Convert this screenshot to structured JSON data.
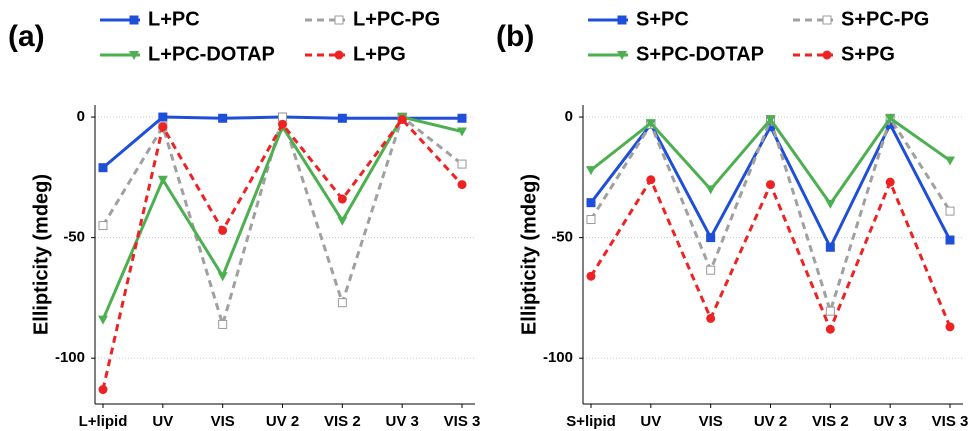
{
  "chart_data": [
    {
      "type": "line",
      "panel_label": "(a)",
      "y_label": "Ellipticity (mdeg)",
      "categories": [
        "L+lipid",
        "UV",
        "VIS",
        "UV 2",
        "VIS 2",
        "UV 3",
        "VIS 3"
      ],
      "ylim": [
        -119,
        5
      ],
      "yticks": [
        0,
        -50,
        -100
      ],
      "grid": true,
      "series": [
        {
          "name": "L+PC",
          "color": "#1f4fd8",
          "marker": "square",
          "dashed": false,
          "values": [
            -21,
            0,
            -0.5,
            0,
            -0.5,
            -0.5,
            -0.5
          ]
        },
        {
          "name": "L+PC-PG",
          "color": "#a0a0a0",
          "marker": "open-square",
          "dashed": true,
          "values": [
            -45,
            -4,
            -86,
            0,
            -77,
            0,
            -19.5
          ]
        },
        {
          "name": "L+PC-DOTAP",
          "color": "#4caf50",
          "marker": "triangle-down",
          "dashed": false,
          "values": [
            -84,
            -26,
            -66,
            -4,
            -43,
            0,
            -6
          ]
        },
        {
          "name": "L+PG",
          "color": "#ee2222",
          "marker": "circle",
          "dashed": true,
          "values": [
            -113,
            -4,
            -47,
            -3,
            -34,
            -1,
            -28
          ]
        }
      ]
    },
    {
      "type": "line",
      "panel_label": "(b)",
      "y_label": "Ellipticity (mdeg)",
      "categories": [
        "S+lipid",
        "UV",
        "VIS",
        "UV 2",
        "VIS 2",
        "UV 3",
        "VIS 3"
      ],
      "ylim": [
        -119,
        5
      ],
      "yticks": [
        0,
        -50,
        -100
      ],
      "grid": true,
      "series": [
        {
          "name": "S+PC",
          "color": "#1f4fd8",
          "marker": "square",
          "dashed": false,
          "values": [
            -35.5,
            -3,
            -50,
            -4,
            -54,
            -3,
            -51
          ]
        },
        {
          "name": "S+PC-PG",
          "color": "#a0a0a0",
          "marker": "open-square",
          "dashed": true,
          "values": [
            -42.5,
            -3,
            -63.5,
            -1,
            -80.5,
            -0.5,
            -39
          ]
        },
        {
          "name": "S+PC-DOTAP",
          "color": "#4caf50",
          "marker": "triangle-down",
          "dashed": false,
          "values": [
            -22,
            -2.5,
            -30,
            -1,
            -36,
            -0.5,
            -18
          ]
        },
        {
          "name": "S+PG",
          "color": "#ee2222",
          "marker": "circle",
          "dashed": true,
          "values": [
            -66,
            -26,
            -83.5,
            -28,
            -88,
            -27,
            -87
          ]
        }
      ]
    }
  ]
}
